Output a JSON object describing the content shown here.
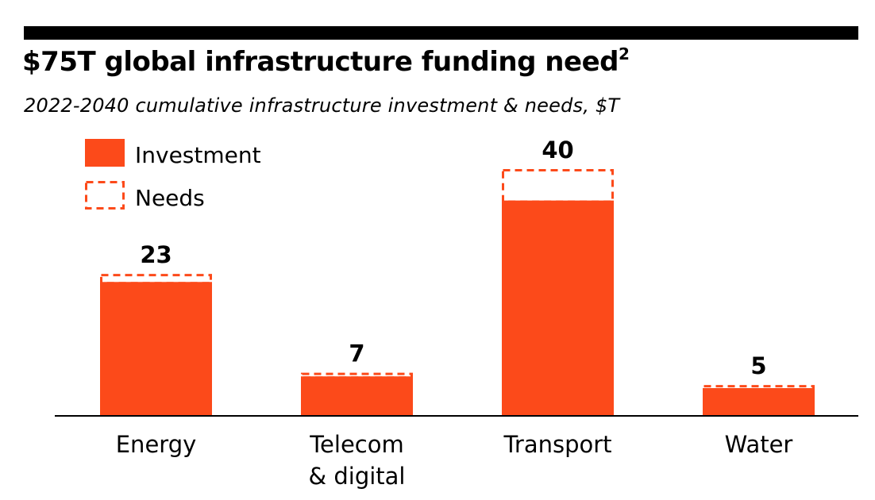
{
  "title": "$75T global infrastructure funding need",
  "title_footnote": "2",
  "subtitle": "2022-2040 cumulative infrastructure investment & needs, $T",
  "colors": {
    "investment": "#fc4a1a",
    "needs_stroke": "#fc4a1a",
    "rule": "#000000"
  },
  "chart_data": {
    "type": "bar",
    "title": "$75T global infrastructure funding need",
    "subtitle": "2022-2040 cumulative infrastructure investment & needs, $T",
    "categories": [
      [
        "Energy"
      ],
      [
        "Telecom",
        "& digital"
      ],
      [
        "Transport"
      ],
      [
        "Water"
      ]
    ],
    "series": [
      {
        "name": "Investment",
        "values": [
          21.7,
          6.4,
          34.9,
          4.5
        ]
      },
      {
        "name": "Needs",
        "values": [
          23,
          7,
          40,
          5
        ]
      }
    ],
    "data_labels": [
      "23",
      "7",
      "40",
      "5"
    ],
    "ylim": [
      0,
      40
    ],
    "grid": false,
    "legend_position": "top-left",
    "xlabel": "",
    "ylabel": ""
  }
}
